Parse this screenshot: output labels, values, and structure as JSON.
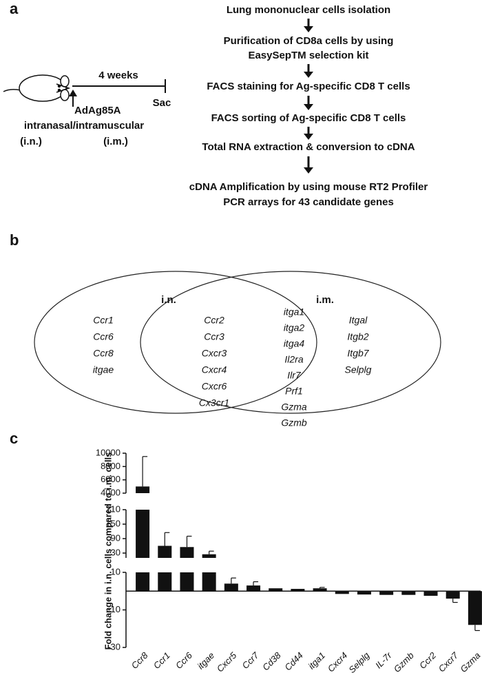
{
  "panel_a": {
    "label": "a",
    "timeline": "4 weeks",
    "end": "Sac",
    "vaccine": "AdAg85A",
    "routes": "intranasal/intramuscular",
    "route_in": "(i.n.)",
    "route_im": "(i.m.)",
    "steps": [
      [
        "Lung mononuclear cells isolation"
      ],
      [
        "Purification of CD8a cells by using",
        "EasySepTM selection kit"
      ],
      [
        "FACS staining for Ag-specific CD8 T cells"
      ],
      [
        "FACS sorting of Ag-specific CD8 T cells"
      ],
      [
        "Total RNA extraction & conversion to cDNA"
      ],
      [
        "cDNA Amplification by using mouse RT2 Profiler",
        "PCR arrays for 43 candidate genes"
      ]
    ]
  },
  "panel_b": {
    "label": "b",
    "left_title": "i.n.",
    "right_title": "i.m.",
    "left_only": [
      "Ccr1",
      "Ccr6",
      "Ccr8",
      "itgae"
    ],
    "shared_a": [
      "Ccr2",
      "Ccr3",
      "Cxcr3",
      "Cxcr4",
      "Cxcr6",
      "Cx3cr1"
    ],
    "shared_b": [
      "itga1",
      "itga2",
      "itga4",
      "Il2ra",
      "Ilr7",
      "Prf1",
      "Gzma",
      "Gzmb"
    ],
    "right_only": [
      "Itgal",
      "Itgb2",
      "Itgb7",
      "Selplg"
    ]
  },
  "chart_data": {
    "type": "bar",
    "label": "c",
    "y_label": "Fold change in i.n. cells compared to i.m. cells",
    "categories": [
      "Ccr8",
      "Ccr1",
      "Ccr6",
      "itgae",
      "Cxcr5",
      "Ccr7",
      "Cd38",
      "Cd44",
      "itga1",
      "Cxcr4",
      "Selplg",
      "IL-7r",
      "Gzmb",
      "Ccr2",
      "Cxcr7",
      "Gzma"
    ],
    "values": [
      5000,
      60,
      55,
      25,
      4,
      3,
      1.5,
      1.2,
      1.5,
      -1.5,
      -1.8,
      -2,
      -2,
      -2.5,
      -4,
      -18
    ],
    "errors": [
      4500,
      55,
      45,
      13,
      3,
      2,
      0,
      0,
      0.5,
      0,
      0,
      0,
      0,
      0,
      2,
      3
    ],
    "color": "#111111",
    "y_segments": [
      {
        "ylim": [
          -30,
          10
        ],
        "yticks": [
          -30,
          -10,
          10
        ]
      },
      {
        "ylim": [
          10,
          210
        ],
        "yticks": [
          30,
          90,
          150,
          210
        ]
      },
      {
        "ylim": [
          4000,
          10000
        ],
        "yticks": [
          4000,
          6000,
          8000,
          10000
        ]
      }
    ]
  }
}
